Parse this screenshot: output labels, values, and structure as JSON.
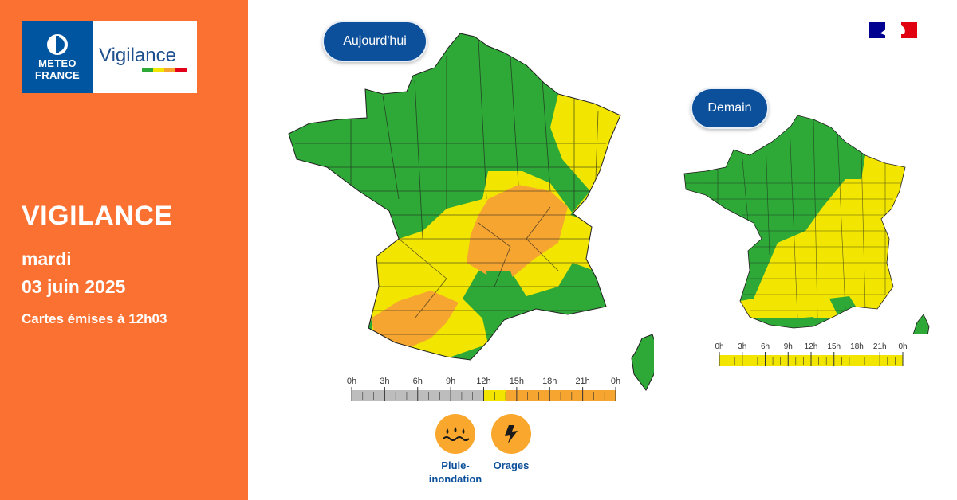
{
  "logo": {
    "brand_line1": "METEO",
    "brand_line2": "FRANCE",
    "product": "Vigilance",
    "brand_icon": "meteo-france-logo-icon",
    "bar_colors": [
      "#2ea836",
      "#f2e600",
      "#f7a531",
      "#e2001a"
    ]
  },
  "panel": {
    "title": "VIGILANCE",
    "day": "mardi",
    "date": "03 juin 2025",
    "issued": "Cartes émises à 12h03",
    "background": "#fa7131"
  },
  "flag": {
    "icon": "republique-francaise-flag-icon",
    "colors": [
      "#000091",
      "#ffffff",
      "#e1000f"
    ]
  },
  "legend_colors": {
    "green": "#2ea836",
    "yellow": "#f2e600",
    "orange": "#f7a531",
    "grey": "#bdbdbd"
  },
  "today": {
    "label": "Aujourd'hui",
    "timeline": {
      "ticks": [
        "0h",
        "3h",
        "6h",
        "9h",
        "12h",
        "15h",
        "18h",
        "21h",
        "0h"
      ],
      "segments": [
        {
          "from_hour": 0,
          "to_hour": 12,
          "level": "grey"
        },
        {
          "from_hour": 12,
          "to_hour": 14,
          "level": "yellow"
        },
        {
          "from_hour": 14,
          "to_hour": 24,
          "level": "orange"
        }
      ]
    },
    "hazards": [
      {
        "icon": "rain-flood-icon",
        "label_line1": "Pluie-",
        "label_line2": "inondation"
      },
      {
        "icon": "thunderstorm-icon",
        "label_line1": "Orages",
        "label_line2": ""
      }
    ]
  },
  "tomorrow": {
    "label": "Demain",
    "timeline": {
      "ticks": [
        "0h",
        "3h",
        "6h",
        "9h",
        "12h",
        "15h",
        "18h",
        "21h",
        "0h"
      ],
      "segments": [
        {
          "from_hour": 0,
          "to_hour": 24,
          "level": "yellow"
        }
      ]
    }
  }
}
